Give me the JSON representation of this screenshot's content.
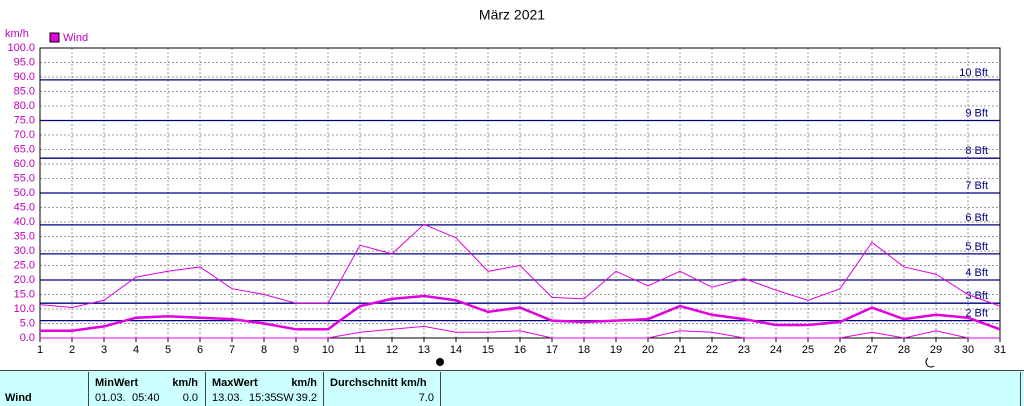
{
  "chart_data": {
    "type": "line",
    "title": "März 2021",
    "y_label": "km/h",
    "x": [
      1,
      2,
      3,
      4,
      5,
      6,
      7,
      8,
      9,
      10,
      11,
      12,
      13,
      14,
      15,
      16,
      17,
      18,
      19,
      20,
      21,
      22,
      23,
      24,
      25,
      26,
      27,
      28,
      29,
      30,
      31
    ],
    "xlim": [
      1,
      31
    ],
    "xticks": [
      1,
      2,
      3,
      4,
      5,
      6,
      7,
      8,
      9,
      10,
      11,
      12,
      13,
      14,
      15,
      16,
      17,
      18,
      19,
      20,
      21,
      22,
      23,
      24,
      25,
      26,
      27,
      28,
      29,
      30,
      31
    ],
    "ylim": [
      0,
      100
    ],
    "yticks": [
      {
        "value": 0,
        "label": "0.0"
      },
      {
        "value": 5,
        "label": "5.0"
      },
      {
        "value": 10,
        "label": "10.0"
      },
      {
        "value": 15,
        "label": "15.0"
      },
      {
        "value": 20,
        "label": "20.0"
      },
      {
        "value": 25,
        "label": "25.0"
      },
      {
        "value": 30,
        "label": "30.0"
      },
      {
        "value": 35,
        "label": "35.0"
      },
      {
        "value": 40,
        "label": "40.0"
      },
      {
        "value": 45,
        "label": "45.0"
      },
      {
        "value": 50,
        "label": "50.0"
      },
      {
        "value": 55,
        "label": "55.0"
      },
      {
        "value": 60,
        "label": "60.0"
      },
      {
        "value": 65,
        "label": "65.0"
      },
      {
        "value": 70,
        "label": "70.0"
      },
      {
        "value": 75,
        "label": "75.0"
      },
      {
        "value": 80,
        "label": "80.0"
      },
      {
        "value": 85,
        "label": "85.0"
      },
      {
        "value": 90,
        "label": "90.0"
      },
      {
        "value": 95,
        "label": "95.0"
      },
      {
        "value": 100,
        "label": "100.0"
      }
    ],
    "grid": true,
    "beaufort_lines": [
      {
        "value": 6,
        "label": "2 Bft"
      },
      {
        "value": 12,
        "label": "3 Bft"
      },
      {
        "value": 20,
        "label": "4 Bft"
      },
      {
        "value": 29,
        "label": "5 Bft"
      },
      {
        "value": 39,
        "label": "6 Bft"
      },
      {
        "value": 50,
        "label": "7 Bft"
      },
      {
        "value": 62,
        "label": "8 Bft"
      },
      {
        "value": 75,
        "label": "9 Bft"
      },
      {
        "value": 89,
        "label": "10 Bft"
      }
    ],
    "beaufort_color": "#000080",
    "series": [
      {
        "name": "Wind",
        "color": "#e000e0",
        "max": [
          11.5,
          10.5,
          13,
          21,
          23,
          24.5,
          17,
          15,
          12,
          12,
          32,
          29,
          39.2,
          34.5,
          23,
          25,
          14,
          13.5,
          23,
          18,
          23,
          17.5,
          20.5,
          16.5,
          13,
          17,
          33,
          24.5,
          22,
          15,
          11
        ],
        "mean": [
          2.5,
          2.5,
          4,
          7,
          7.5,
          7,
          6.5,
          5,
          3,
          3,
          11,
          13.5,
          14.5,
          13,
          9,
          10.5,
          6,
          5.5,
          6,
          6.5,
          11,
          8,
          6.5,
          4.5,
          4.5,
          5.5,
          10.5,
          6.5,
          8,
          7,
          3
        ],
        "min": [
          0,
          0,
          0,
          0,
          0,
          0,
          0,
          0,
          0,
          0,
          2,
          3,
          4,
          2,
          2,
          2.5,
          0,
          0,
          0,
          0,
          2.5,
          2,
          0,
          0,
          0,
          0,
          2,
          0,
          2.5,
          0,
          0
        ]
      }
    ]
  },
  "table": {
    "row_label": "Wind",
    "headers": [
      "MinWert",
      "km/h",
      "MaxWert",
      "km/h",
      "Durchschnitt km/h"
    ],
    "min": {
      "date": "01.03.",
      "time": "05:40",
      "value": "0.0"
    },
    "max": {
      "date": "13.03.",
      "time": "15:35",
      "direction": "SW",
      "value": "39.2"
    },
    "mean": {
      "value": "7.0"
    }
  }
}
